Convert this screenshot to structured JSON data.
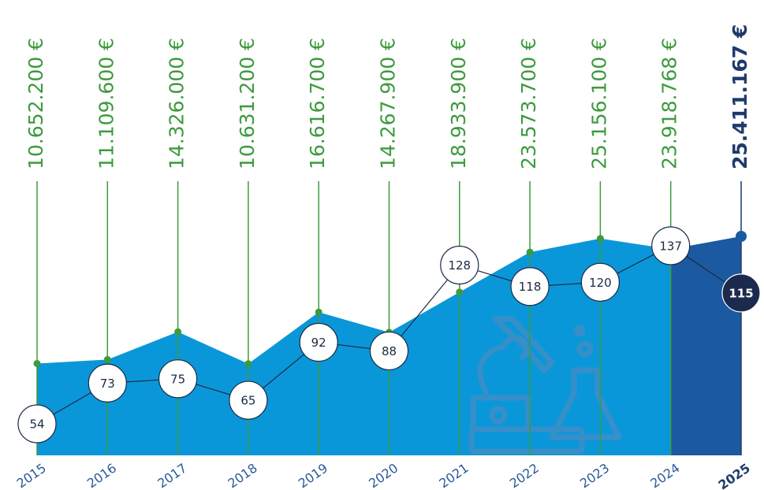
{
  "chart_data": {
    "type": "area",
    "categories": [
      "2015",
      "2016",
      "2017",
      "2018",
      "2019",
      "2020",
      "2021",
      "2022",
      "2023",
      "2024",
      "2025"
    ],
    "series": [
      {
        "color": "#0a97d9",
        "label_color": "#3d9a3e",
        "values": [
          10652200,
          11109600,
          14326000,
          10631200,
          16616700,
          14267900,
          18933900,
          23573700,
          25156100,
          23918768,
          25411167
        ],
        "value_labels": [
          "10.652.200 €",
          "11.109.600 €",
          "14.326.000 €",
          "10.631.200 €",
          "16.616.700 €",
          "14.267.900 €",
          "18.933.900 €",
          "23.573.700 €",
          "25.156.100 €",
          "23.918.768 €",
          "25.411.167 €"
        ]
      },
      {
        "color": "#ffffff",
        "values": [
          54,
          73,
          75,
          65,
          92,
          88,
          128,
          118,
          120,
          137,
          115
        ]
      }
    ],
    "highlight_last": true,
    "highlight_color": "#1b5aa0",
    "highlight_text_color": "#1f3a6b"
  }
}
